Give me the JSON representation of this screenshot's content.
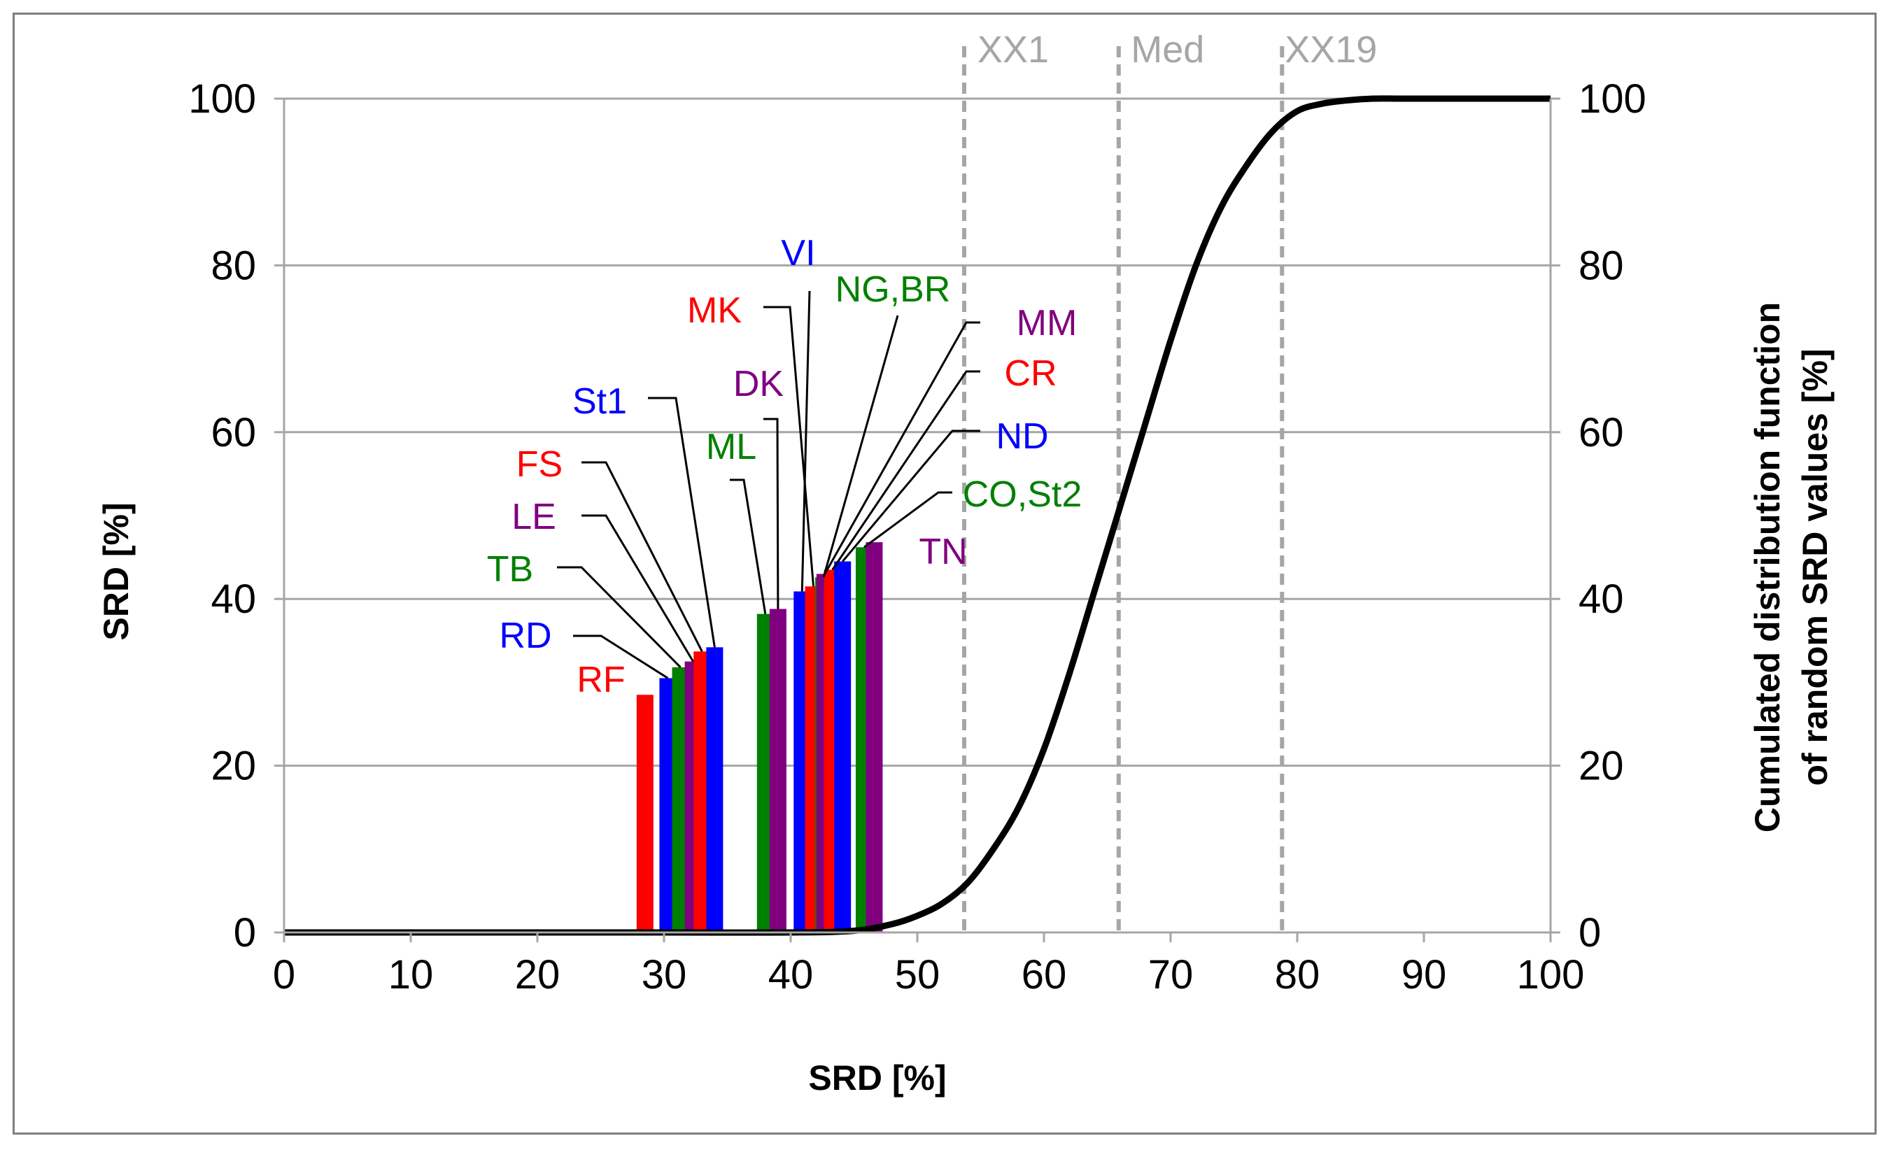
{
  "chart_data": {
    "type": "bar",
    "title": "",
    "xlabel": "SRD [%]",
    "ylabel": "SRD [%]",
    "y2label_line1": "Cumulated distribution function",
    "y2label_line2": "of random SRD values [%]",
    "xlim": [
      0,
      100
    ],
    "ylim": [
      0,
      100
    ],
    "y2lim": [
      0,
      100
    ],
    "xticks": [
      0,
      10,
      20,
      30,
      40,
      50,
      60,
      70,
      80,
      90,
      100
    ],
    "yticks": [
      0,
      20,
      40,
      60,
      80,
      100
    ],
    "grid": "horizontal",
    "colors": {
      "red": "#ff0000",
      "blue": "#0000ff",
      "green": "#008000",
      "purple": "#800080",
      "curve": "#000000",
      "grid": "#a6a6a6",
      "refline": "#a6a6a6"
    },
    "bars": [
      {
        "label": "RF",
        "x": 28.5,
        "value": 28.5,
        "color": "red"
      },
      {
        "label": "RD",
        "x": 30.3,
        "value": 30.5,
        "color": "blue"
      },
      {
        "label": "TB",
        "x": 31.3,
        "value": 31.8,
        "color": "green"
      },
      {
        "label": "LE",
        "x": 32.3,
        "value": 32.5,
        "color": "purple"
      },
      {
        "label": "FS",
        "x": 33.0,
        "value": 33.7,
        "color": "red"
      },
      {
        "label": "St1",
        "x": 34.0,
        "value": 34.2,
        "color": "blue"
      },
      {
        "label": "ML",
        "x": 38.0,
        "value": 38.2,
        "color": "green"
      },
      {
        "label": "DK",
        "x": 39.0,
        "value": 38.8,
        "color": "purple"
      },
      {
        "label": "VI",
        "x": 40.9,
        "value": 40.9,
        "color": "blue"
      },
      {
        "label": "MK",
        "x": 41.8,
        "value": 41.5,
        "color": "red"
      },
      {
        "label": "NG,BR",
        "x": 42.6,
        "value": 42.6,
        "color": "green"
      },
      {
        "label": "MM",
        "x": 42.7,
        "value": 43.0,
        "color": "purple"
      },
      {
        "label": "CR",
        "x": 43.3,
        "value": 43.5,
        "color": "red"
      },
      {
        "label": "ND",
        "x": 44.1,
        "value": 44.5,
        "color": "blue"
      },
      {
        "label": "CO,St2",
        "x": 45.8,
        "value": 46.2,
        "color": "green"
      },
      {
        "label": "TN",
        "x": 46.6,
        "value": 46.8,
        "color": "purple"
      }
    ],
    "reference_lines": [
      {
        "label": "XX1",
        "x": 53.7
      },
      {
        "label": "Med",
        "x": 65.9
      },
      {
        "label": "XX19",
        "x": 78.8
      }
    ],
    "cdf_curve": {
      "name": "Cumulated distribution function of random SRD values",
      "x": [
        0,
        30,
        40,
        45,
        48,
        50,
        52,
        54,
        56,
        58,
        60,
        62,
        64,
        66,
        68,
        70,
        72,
        74,
        76,
        78,
        80,
        82,
        84,
        86,
        88,
        90,
        95,
        100
      ],
      "y": [
        0,
        0,
        0,
        0.2,
        1,
        2,
        3.5,
        6,
        10,
        15,
        22,
        31,
        41,
        51,
        61,
        71,
        80,
        87,
        92,
        96,
        98.5,
        99.4,
        99.8,
        100,
        100,
        100,
        100,
        100
      ]
    }
  }
}
